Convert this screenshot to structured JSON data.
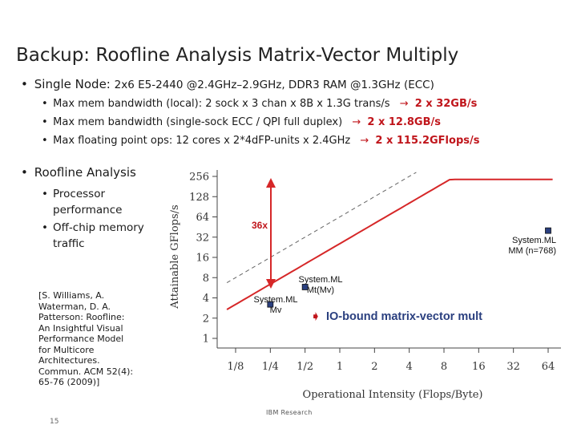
{
  "title": "Backup: Roofline Analysis Matrix-Vector Multiply",
  "single_node": {
    "label": "Single Node:",
    "detail": "2x6 E5-2440 @2.4GHz–2.9GHz, DDR3 RAM @1.3GHz (ECC)"
  },
  "sub_bullets": [
    {
      "text": "Max mem bandwidth (local): 2 sock x 3 chan x 8B x 1.3G trans/s",
      "result": "2 x 32GB/s"
    },
    {
      "text": "Max mem bandwidth (single-sock ECC / QPI full duplex)",
      "result": "2 x 12.8GB/s"
    },
    {
      "text": "Max floating point ops: 12 cores x 2*4dFP-units x 2.4GHz",
      "result": "2 x 115.2GFlops/s"
    }
  ],
  "roofline": {
    "label": "Roofline Analysis",
    "items": [
      "Processor performance",
      "Off-chip memory traffic"
    ]
  },
  "reference": "[S. Williams, A. Waterman, D. A. Patterson: Roofline: An Insightful Visual Performance Model for Multicore Architectures. Commun. ACM 52(4): 65-76 (2009)]",
  "page_number": "15",
  "footer": "IBM Research",
  "icons": {
    "arrow": "right-arrow-icon",
    "bullet": "bullet-icon"
  },
  "colors": {
    "accent": "#c0151b",
    "marker": "#2a3f7f"
  },
  "chart_data": {
    "type": "scatter",
    "xlabel": "Operational Intensity (Flops/Byte)",
    "ylabel": "Attainable GFlops/s",
    "x_ticks": [
      "1/8",
      "1/4",
      "1/2",
      "1",
      "2",
      "4",
      "8",
      "16",
      "32",
      "64"
    ],
    "y_ticks": [
      "1",
      "2",
      "4",
      "8",
      "16",
      "32",
      "64",
      "128",
      "256"
    ],
    "xlim": [
      0.125,
      64
    ],
    "ylim": [
      1,
      256
    ],
    "scale": "log2",
    "rooflines": [
      {
        "style": "solid",
        "bandwidth_gbps": 25.6,
        "peak_gflops": 230.4
      },
      {
        "style": "dashed",
        "bandwidth_gbps": 64
      }
    ],
    "points": [
      {
        "label": "System.ML Mv",
        "x": 0.25,
        "y": 3.2
      },
      {
        "label": "System.ML Mt(Mv)",
        "x": 0.5,
        "y": 5.8
      },
      {
        "label": "System.ML MM (n=768)",
        "x": 64,
        "y": 40
      }
    ],
    "annotations": {
      "gap": "36x",
      "note": "IO-bound matrix-vector mult"
    }
  }
}
